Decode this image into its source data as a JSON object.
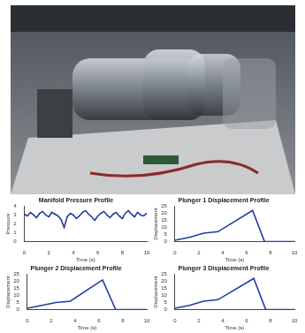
{
  "chart_data": [
    {
      "type": "line",
      "title": "Manifold Pressure Profile",
      "x_label": "Time (s)",
      "y_label": "Pressure",
      "x": [
        0,
        0.25,
        0.5,
        0.75,
        1,
        1.25,
        1.5,
        1.75,
        2,
        2.25,
        2.5,
        2.75,
        3,
        3.25,
        3.5,
        3.75,
        4,
        4.25,
        4.5,
        4.75,
        5,
        5.25,
        5.5,
        5.75,
        6,
        6.25,
        6.5,
        6.75,
        7,
        7.25,
        7.5,
        7.75,
        8,
        8.25,
        8.5,
        8.75,
        9,
        9.25,
        9.5,
        9.75,
        10
      ],
      "values": [
        3.1,
        2.9,
        3.3,
        3.0,
        2.7,
        3.2,
        3.4,
        3.0,
        2.8,
        3.3,
        3.1,
        2.9,
        2.5,
        1.6,
        2.8,
        3.2,
        3.0,
        2.6,
        2.9,
        3.3,
        3.5,
        3.1,
        2.8,
        2.4,
        2.9,
        3.2,
        3.4,
        3.0,
        2.7,
        3.1,
        3.3,
        2.9,
        2.6,
        3.2,
        3.5,
        3.1,
        2.8,
        3.3,
        3.0,
        2.9,
        3.2
      ],
      "color": "#1f3f9f",
      "xlim": [
        0,
        10
      ],
      "xticks": [
        0,
        2,
        4,
        6,
        8,
        10
      ],
      "ylim": [
        0,
        4
      ],
      "yticks": [
        0,
        1,
        2,
        3,
        4
      ],
      "grid": false
    },
    {
      "type": "line",
      "title": "Plunger 1 Displacement Profile",
      "x_label": "Time (s)",
      "y_label": "Displacement",
      "x": [
        0,
        1.2,
        2.4,
        3.6,
        6.5,
        7.5,
        10
      ],
      "values": [
        1,
        3,
        6,
        7,
        22,
        0,
        0
      ],
      "color": "#1f3f9f",
      "xlim": [
        0,
        10
      ],
      "xticks": [
        0,
        2,
        4,
        6,
        8,
        10
      ],
      "ylim": [
        0,
        25
      ],
      "yticks": [
        0,
        5,
        10,
        15,
        20,
        25
      ],
      "grid": false
    },
    {
      "type": "line",
      "title": "Plunger 2 Displacement Profile",
      "x_label": "Time (s)",
      "y_label": "Displacement",
      "x": [
        0,
        1.2,
        2.4,
        3.6,
        6.3,
        7.4,
        10
      ],
      "values": [
        1,
        3,
        5,
        6,
        21,
        0,
        0
      ],
      "color": "#1f3f9f",
      "xlim": [
        0,
        10
      ],
      "xticks": [
        0,
        2,
        4,
        6,
        8,
        10
      ],
      "ylim": [
        0,
        25
      ],
      "yticks": [
        0,
        5,
        10,
        15,
        20,
        25
      ],
      "grid": false
    },
    {
      "type": "line",
      "title": "Plunger 3 Displacement Profile",
      "x_label": "Time (s)",
      "y_label": "Displacement",
      "x": [
        0,
        1.2,
        2.4,
        3.6,
        6.6,
        7.6,
        10
      ],
      "values": [
        1,
        3,
        6,
        7,
        22,
        0,
        0
      ],
      "color": "#1f3f9f",
      "xlim": [
        0,
        10
      ],
      "xticks": [
        0,
        2,
        4,
        6,
        8,
        10
      ],
      "ylim": [
        0,
        25
      ],
      "yticks": [
        0,
        5,
        10,
        15,
        20,
        25
      ],
      "grid": false
    }
  ]
}
